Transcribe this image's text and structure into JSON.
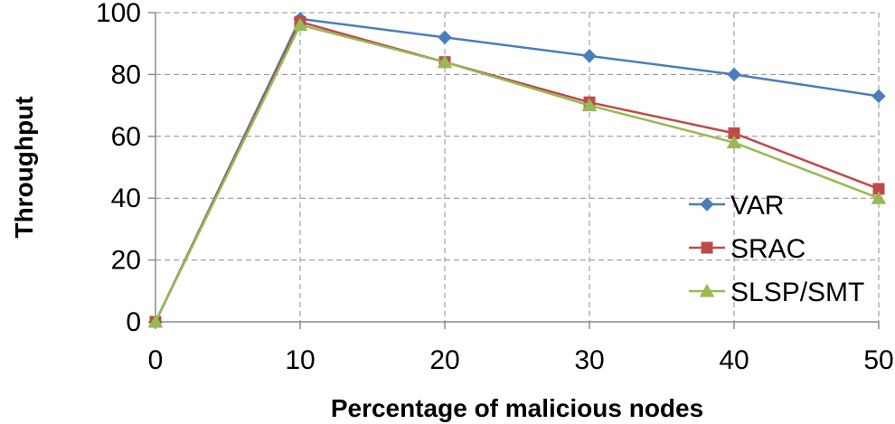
{
  "chart_data": {
    "type": "line",
    "xlabel": "Percentage of malicious nodes",
    "ylabel": "Throughput",
    "x": [
      0,
      10,
      20,
      30,
      40,
      50
    ],
    "xlim": [
      0,
      50
    ],
    "ylim": [
      0,
      100
    ],
    "xticks": [
      "0",
      "10",
      "20",
      "30",
      "40",
      "50"
    ],
    "yticks": [
      "0",
      "20",
      "40",
      "60",
      "80",
      "100"
    ],
    "grid": true,
    "legend_position": "bottom-right",
    "series": [
      {
        "name": "VAR",
        "marker": "diamond",
        "color": "#4a7ebb",
        "values": [
          0,
          98,
          92,
          86,
          80,
          73
        ]
      },
      {
        "name": "SRAC",
        "marker": "square",
        "color": "#be4b48",
        "values": [
          0,
          97,
          84,
          71,
          61,
          43
        ]
      },
      {
        "name": "SLSP/SMT",
        "marker": "triangle",
        "color": "#98b954",
        "values": [
          0,
          96,
          84,
          70,
          58,
          40
        ]
      }
    ]
  }
}
